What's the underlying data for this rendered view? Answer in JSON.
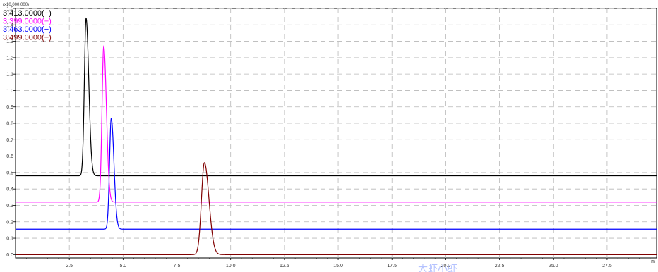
{
  "chart_data": {
    "type": "line",
    "title": "",
    "xlabel": "",
    "ylabel": "",
    "y_multiplier": "(x10,000,000)",
    "x_unit": "m",
    "xlim": [
      0.0,
      29.8
    ],
    "ylim": [
      -0.02,
      1.5
    ],
    "grid": true,
    "legend_position": "top-left",
    "x_ticks": [
      2.5,
      5.0,
      7.5,
      10.0,
      12.5,
      15.0,
      17.5,
      20.0,
      22.5,
      25.0,
      27.5
    ],
    "x_tick_labels": [
      "2.5",
      "5.0",
      "7.5",
      "10.0",
      "12.5",
      "15.0",
      "17.5",
      "20.0",
      "22.5",
      "25.0",
      "27.5"
    ],
    "y_ticks": [
      0.0,
      0.1,
      0.2,
      0.3,
      0.4,
      0.5,
      0.6,
      0.7,
      0.8,
      0.9,
      1.0,
      1.1,
      1.2,
      1.3,
      1.4,
      1.5
    ],
    "y_tick_labels": [
      "0.0",
      "0.1",
      "0.2",
      "0.3",
      "0.4",
      "0.5",
      "0.6",
      "0.7",
      "0.8",
      "0.9",
      "1.0",
      "1.1",
      "1.2",
      "1.3",
      "1.4",
      "1.5"
    ],
    "series": [
      {
        "name": "3:413.0000(−)",
        "color": "#000000",
        "baseline": 0.48,
        "peak_x": 3.28,
        "peak_y": 1.44,
        "width": 0.1
      },
      {
        "name": "3:399.0000(−)",
        "color": "#ff00ff",
        "baseline": 0.32,
        "peak_x": 4.1,
        "peak_y": 1.27,
        "width": 0.1
      },
      {
        "name": "3:463.0000(−)",
        "color": "#0000ff",
        "baseline": 0.155,
        "peak_x": 4.45,
        "peak_y": 0.83,
        "width": 0.1
      },
      {
        "name": "3:499.0000(−)",
        "color": "#800000",
        "baseline": 0.0,
        "peak_x": 8.78,
        "peak_y": 0.56,
        "width": 0.17
      }
    ],
    "watermark": "大虾小虾"
  }
}
